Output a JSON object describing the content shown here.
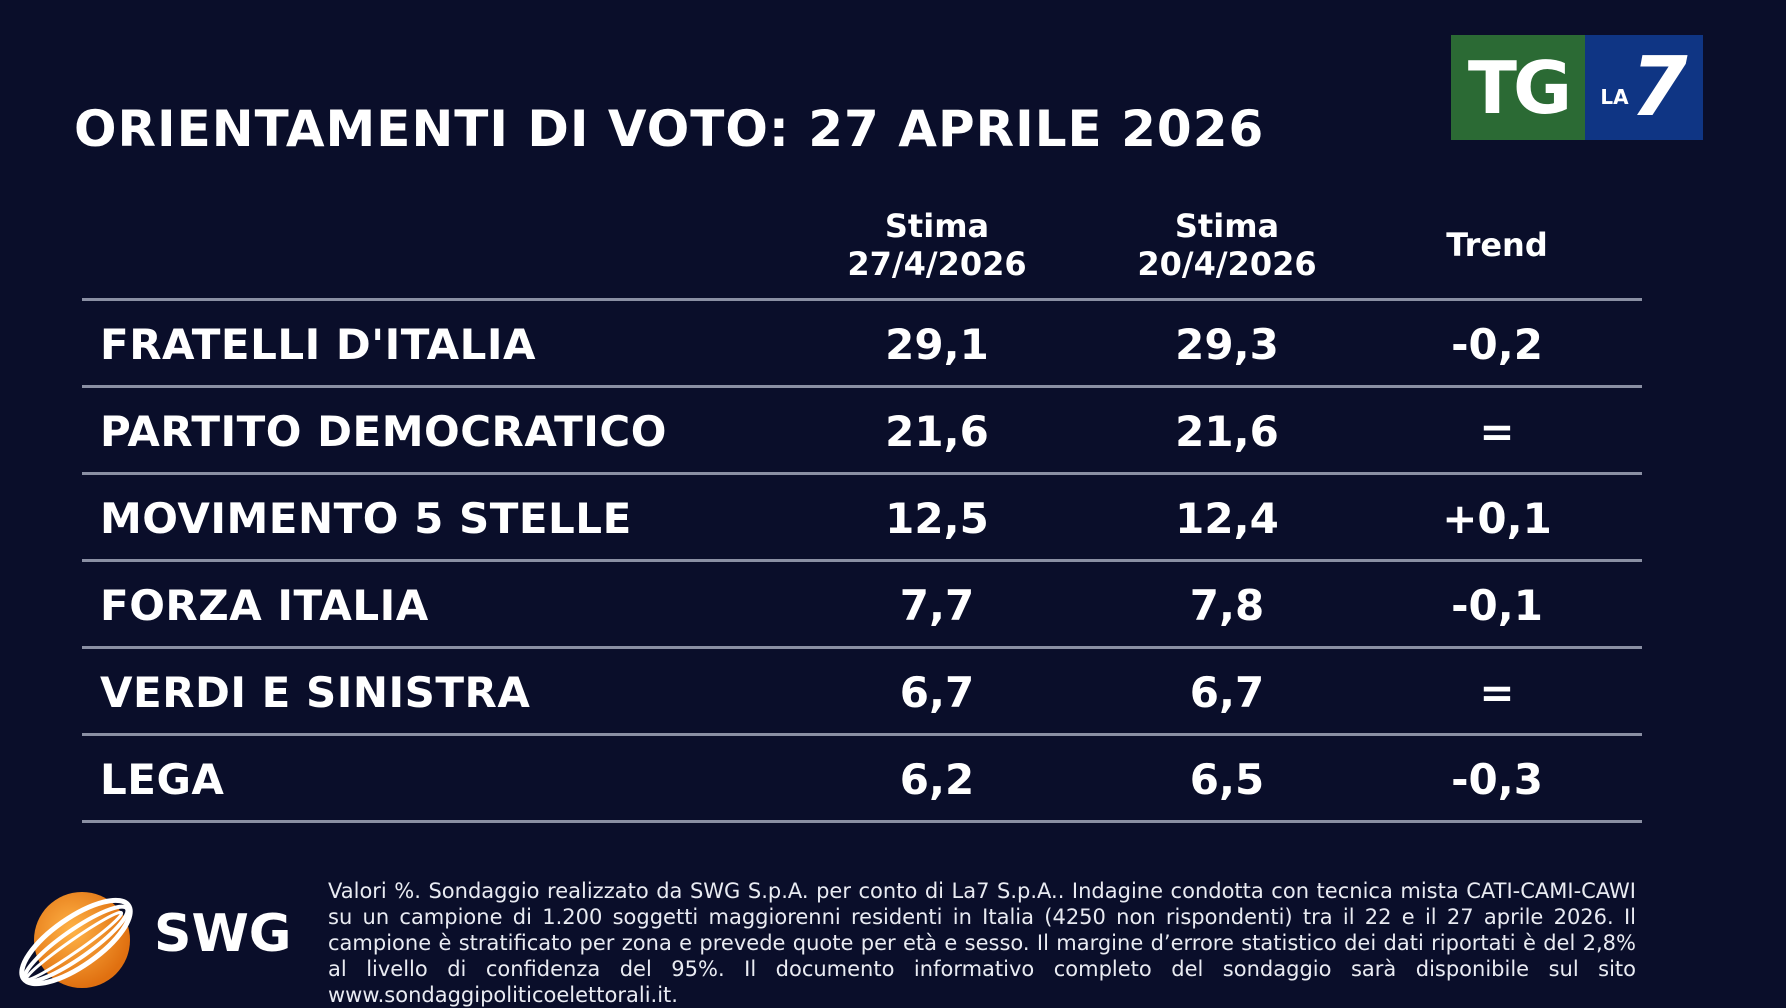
{
  "title": "ORIENTAMENTI DI VOTO: 27 APRILE 2026",
  "logo": {
    "tg": "TG",
    "la": "LA",
    "seven": "7"
  },
  "table": {
    "headers": {
      "col1_line1": "Stima",
      "col1_line2": "27/4/2026",
      "col2_line1": "Stima",
      "col2_line2": "20/4/2026",
      "col3": "Trend"
    },
    "rows": [
      {
        "party": "FRATELLI D'ITALIA",
        "current": "29,1",
        "previous": "29,3",
        "trend": "-0,2"
      },
      {
        "party": "PARTITO DEMOCRATICO",
        "current": "21,6",
        "previous": "21,6",
        "trend": "="
      },
      {
        "party": "MOVIMENTO 5 STELLE",
        "current": "12,5",
        "previous": "12,4",
        "trend": "+0,1"
      },
      {
        "party": "FORZA ITALIA",
        "current": "7,7",
        "previous": "7,8",
        "trend": "-0,1"
      },
      {
        "party": "VERDI E SINISTRA",
        "current": "6,7",
        "previous": "6,7",
        "trend": "="
      },
      {
        "party": "LEGA",
        "current": "6,2",
        "previous": "6,5",
        "trend": "-0,3"
      }
    ]
  },
  "swg": {
    "label": "SWG"
  },
  "footnote": "Valori %. Sondaggio realizzato da SWG S.p.A. per conto di La7 S.p.A.. Indagine condotta con tecnica mista CATI-CAMI-CAWI su un campione di 1.200 soggetti maggiorenni residenti in Italia (4250 non rispondenti) tra il 22 e il 27 aprile 2026. Il campione è stratificato per zona e prevede quote per età e sesso. Il margine d’errore statistico dei dati riportati è del 2,8% al livello di confidenza del 95%. Il documento informativo completo del sondaggio sarà disponibile sul sito www.sondaggipoliticoelettorali.it.",
  "colors": {
    "background": "#0a0e2a",
    "tg_green": "#2b6a34",
    "la7_blue": "#0f3584",
    "swg_orange": "#f08a1c"
  }
}
